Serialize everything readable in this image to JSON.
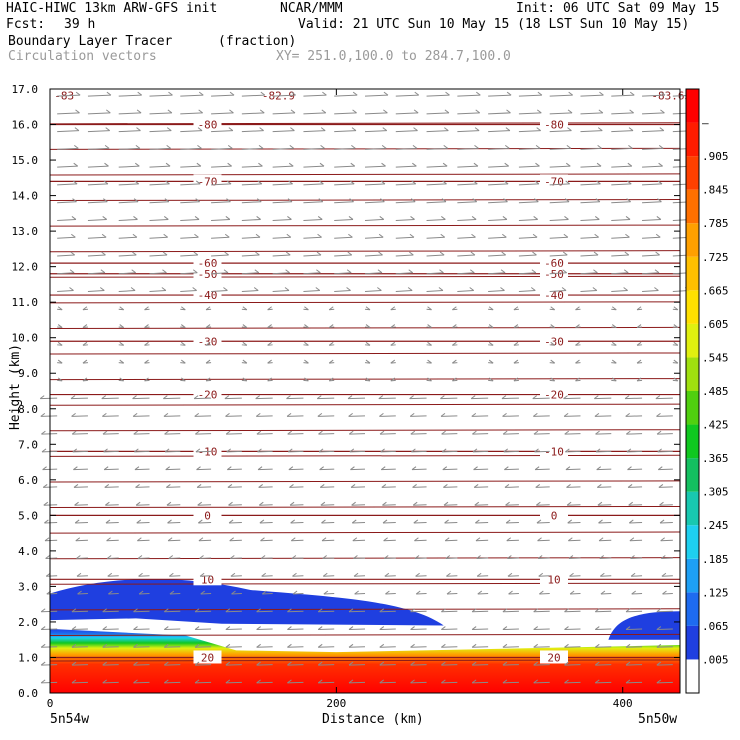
{
  "header": {
    "model": "HAIC-HIWC 13km ARW-GFS init",
    "center": "NCAR/MMM",
    "init": "Init: 06 UTC Sat 09 May 15",
    "fcst_label": "Fcst:",
    "fcst_value": "39 h",
    "valid": "Valid: 21 UTC Sun 10 May 15 (18 LST Sun 10 May 15)",
    "field1_name": "Boundary Layer Tracer",
    "field1_units": "(fraction)",
    "field2_name": "Circulation vectors",
    "xy_text": "XY= 251.0,100.0 to 284.7,100.0"
  },
  "axes": {
    "ylabel": "Height (km)",
    "xlabel": "Distance (km)",
    "left_end_label": "5n54w",
    "right_end_label": "5n50w"
  },
  "colors": {
    "temp_contour": "#8b1a1a",
    "vector": "#8a8a8a",
    "cloud_blue": "#1f3fe0"
  },
  "chart_data": {
    "type": "heatmap",
    "x_range_km": [
      0,
      440
    ],
    "y_range_km": [
      0,
      17
    ],
    "x_ticks": [
      {
        "value": 0,
        "label": "0"
      },
      {
        "value": 200,
        "label": "200"
      },
      {
        "value": 400,
        "label": "400"
      }
    ],
    "y_ticks": [
      {
        "value": 0,
        "label": "0.0"
      },
      {
        "value": 1,
        "label": "1.0"
      },
      {
        "value": 2,
        "label": "2.0"
      },
      {
        "value": 3,
        "label": "3.0"
      },
      {
        "value": 4,
        "label": "4.0"
      },
      {
        "value": 5,
        "label": "5.0"
      },
      {
        "value": 6,
        "label": "6.0"
      },
      {
        "value": 7,
        "label": "7.0"
      },
      {
        "value": 8,
        "label": "8.0"
      },
      {
        "value": 9,
        "label": "9.0"
      },
      {
        "value": 10,
        "label": "10.0"
      },
      {
        "value": 11,
        "label": "11.0"
      },
      {
        "value": 12,
        "label": "12.0"
      },
      {
        "value": 13,
        "label": "13.0"
      },
      {
        "value": 14,
        "label": "14.0"
      },
      {
        "value": 15,
        "label": "15.0"
      },
      {
        "value": 16,
        "label": "16.0"
      },
      {
        "value": 17,
        "label": "17.0"
      }
    ],
    "colorbar": {
      "labels": [
        ".005",
        ".065",
        ".125",
        ".185",
        ".245",
        ".305",
        ".365",
        ".425",
        ".485",
        ".545",
        ".605",
        ".665",
        ".725",
        ".785",
        ".845",
        ".905",
        "–"
      ],
      "colors": [
        "#ffffff",
        "#1f3fe0",
        "#1e6bf0",
        "#1ea0f5",
        "#1ed0f0",
        "#18c8b0",
        "#14c060",
        "#10c820",
        "#50d010",
        "#a0e010",
        "#e0f010",
        "#ffe000",
        "#ffc000",
        "#ffa000",
        "#ff7000",
        "#ff4000",
        "#ff1c00",
        "#ff0000"
      ]
    },
    "isotherms": [
      {
        "label": "-80",
        "height_km": 16.0
      },
      {
        "label": "-70",
        "height_km": 14.4
      },
      {
        "label": "-60",
        "height_km": 12.1
      },
      {
        "label": "-50",
        "height_km": 11.8
      },
      {
        "label": "-40",
        "height_km": 11.2
      },
      {
        "label": "-30",
        "height_km": 9.9
      },
      {
        "label": "-20",
        "height_km": 8.4
      },
      {
        "label": "-10",
        "height_km": 6.8
      },
      {
        "label": "0",
        "height_km": 5.0
      },
      {
        "label": "10",
        "height_km": 3.2
      },
      {
        "label": "20",
        "height_km": 1.0
      }
    ],
    "min_labels": [
      {
        "label": "-83",
        "x_km": 3,
        "height_km": 16.7
      },
      {
        "label": "-82.9",
        "x_km": 148,
        "height_km": 16.7
      },
      {
        "label": "-83.63",
        "x_km": 420,
        "height_km": 16.7
      }
    ],
    "cloud_layer": {
      "base_km": 1.9,
      "top_km": 3.3,
      "x_start_km": 0,
      "x_end_km": 275
    },
    "cloud_layer_right": {
      "base_km": 1.5,
      "top_km": 2.3,
      "x_start_km": 390,
      "x_end_km": 440
    },
    "boundary_layer_top_km": 1.9
  }
}
